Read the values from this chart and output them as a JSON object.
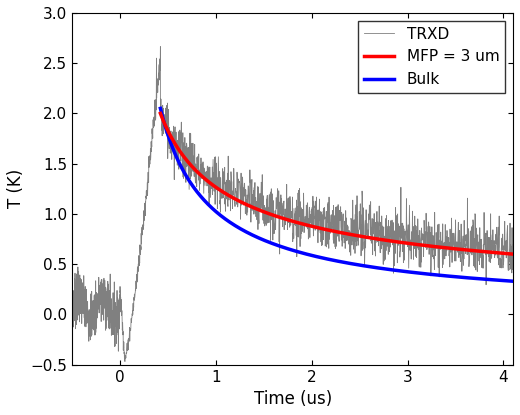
{
  "title": "",
  "xlabel": "Time (us)",
  "ylabel": "T (K)",
  "xlim": [
    -0.5,
    4.1
  ],
  "ylim": [
    -0.5,
    3.0
  ],
  "xticks": [
    0,
    1,
    2,
    3,
    4
  ],
  "yticks": [
    -0.5,
    0,
    0.5,
    1,
    1.5,
    2,
    2.5,
    3
  ],
  "legend_labels": [
    "TRXD",
    "MFP = 3 um",
    "Bulk"
  ],
  "trxd_color": "#808080",
  "mfp_color": "#ff0000",
  "bulk_color": "#0000ff",
  "mfp_A": 2.0,
  "mfp_t0": 0.42,
  "mfp_end": 0.6,
  "bulk_A": 2.05,
  "bulk_t0": 0.42,
  "bulk_end": 0.33,
  "noise_seed": 7,
  "figsize": [
    5.2,
    4.15
  ],
  "dpi": 100
}
